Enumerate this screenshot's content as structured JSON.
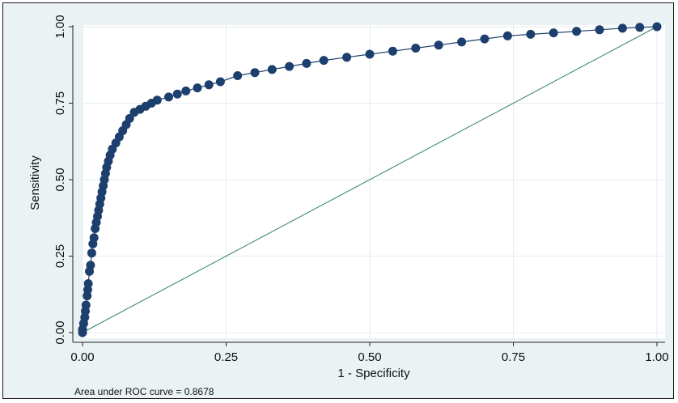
{
  "chart_data": {
    "type": "scatter",
    "title": "",
    "xlabel": "1 - Specificity",
    "ylabel": "Sensitivity",
    "xlim": [
      0,
      1
    ],
    "ylim": [
      0,
      1
    ],
    "xticks": [
      "0.00",
      "0.25",
      "0.50",
      "0.75",
      "1.00"
    ],
    "yticks": [
      "0.00",
      "0.25",
      "0.50",
      "0.75",
      "1.00"
    ],
    "grid": true,
    "note": "Area under ROC curve = 0.8678",
    "series": [
      {
        "points": [
          [
            0.0,
            0.0
          ],
          [
            0.0,
            0.01
          ],
          [
            0.002,
            0.03
          ],
          [
            0.004,
            0.05
          ],
          [
            0.005,
            0.07
          ],
          [
            0.006,
            0.09
          ],
          [
            0.008,
            0.12
          ],
          [
            0.009,
            0.14
          ],
          [
            0.01,
            0.16
          ],
          [
            0.012,
            0.2
          ],
          [
            0.014,
            0.22
          ],
          [
            0.016,
            0.26
          ],
          [
            0.018,
            0.29
          ],
          [
            0.02,
            0.31
          ],
          [
            0.022,
            0.34
          ],
          [
            0.024,
            0.36
          ],
          [
            0.026,
            0.38
          ],
          [
            0.028,
            0.4
          ],
          [
            0.03,
            0.42
          ],
          [
            0.032,
            0.44
          ],
          [
            0.034,
            0.46
          ],
          [
            0.036,
            0.48
          ],
          [
            0.038,
            0.5
          ],
          [
            0.04,
            0.52
          ],
          [
            0.042,
            0.54
          ],
          [
            0.045,
            0.56
          ],
          [
            0.048,
            0.58
          ],
          [
            0.052,
            0.6
          ],
          [
            0.058,
            0.62
          ],
          [
            0.064,
            0.64
          ],
          [
            0.07,
            0.66
          ],
          [
            0.076,
            0.68
          ],
          [
            0.082,
            0.7
          ],
          [
            0.09,
            0.72
          ],
          [
            0.1,
            0.73
          ],
          [
            0.11,
            0.74
          ],
          [
            0.12,
            0.75
          ],
          [
            0.13,
            0.76
          ],
          [
            0.15,
            0.77
          ],
          [
            0.165,
            0.78
          ],
          [
            0.18,
            0.79
          ],
          [
            0.2,
            0.8
          ],
          [
            0.22,
            0.81
          ],
          [
            0.24,
            0.82
          ],
          [
            0.27,
            0.84
          ],
          [
            0.3,
            0.85
          ],
          [
            0.33,
            0.86
          ],
          [
            0.36,
            0.87
          ],
          [
            0.39,
            0.88
          ],
          [
            0.42,
            0.89
          ],
          [
            0.46,
            0.9
          ],
          [
            0.5,
            0.91
          ],
          [
            0.54,
            0.92
          ],
          [
            0.58,
            0.93
          ],
          [
            0.62,
            0.94
          ],
          [
            0.66,
            0.95
          ],
          [
            0.7,
            0.96
          ],
          [
            0.74,
            0.97
          ],
          [
            0.78,
            0.975
          ],
          [
            0.82,
            0.98
          ],
          [
            0.86,
            0.985
          ],
          [
            0.9,
            0.99
          ],
          [
            0.94,
            0.995
          ],
          [
            0.97,
            0.998
          ],
          [
            1.0,
            1.0
          ]
        ]
      },
      {
        "type": "line",
        "points": [
          [
            0,
            0
          ],
          [
            1,
            1
          ]
        ]
      }
    ]
  },
  "colors": {
    "marker": "#1d3f6e",
    "reference_line": "#2e7d6e",
    "plot_background": "#ffffff",
    "outer_background": "#eaf2f3",
    "grid": "#e6ecee"
  }
}
